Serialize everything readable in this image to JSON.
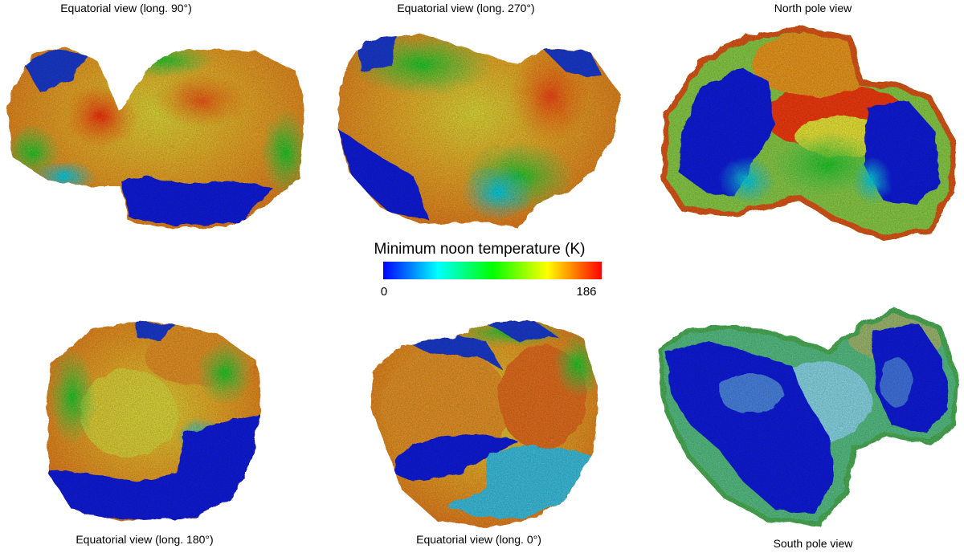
{
  "views": [
    {
      "label": "Equatorial view (long. 90°)"
    },
    {
      "label": "Equatorial view (long. 270°)"
    },
    {
      "label": "North pole view"
    },
    {
      "label": "Equatorial view (long. 180°)"
    },
    {
      "label": "Equatorial view (long. 0°)"
    },
    {
      "label": "South pole view"
    }
  ],
  "colorbar": {
    "title": "Minimum noon temperature (K)",
    "min_label": "0",
    "max_label": "186",
    "min": 0,
    "max": 186,
    "colormap": [
      "#0000ff",
      "#00ffff",
      "#00ff00",
      "#ffff00",
      "#ff0000"
    ]
  }
}
